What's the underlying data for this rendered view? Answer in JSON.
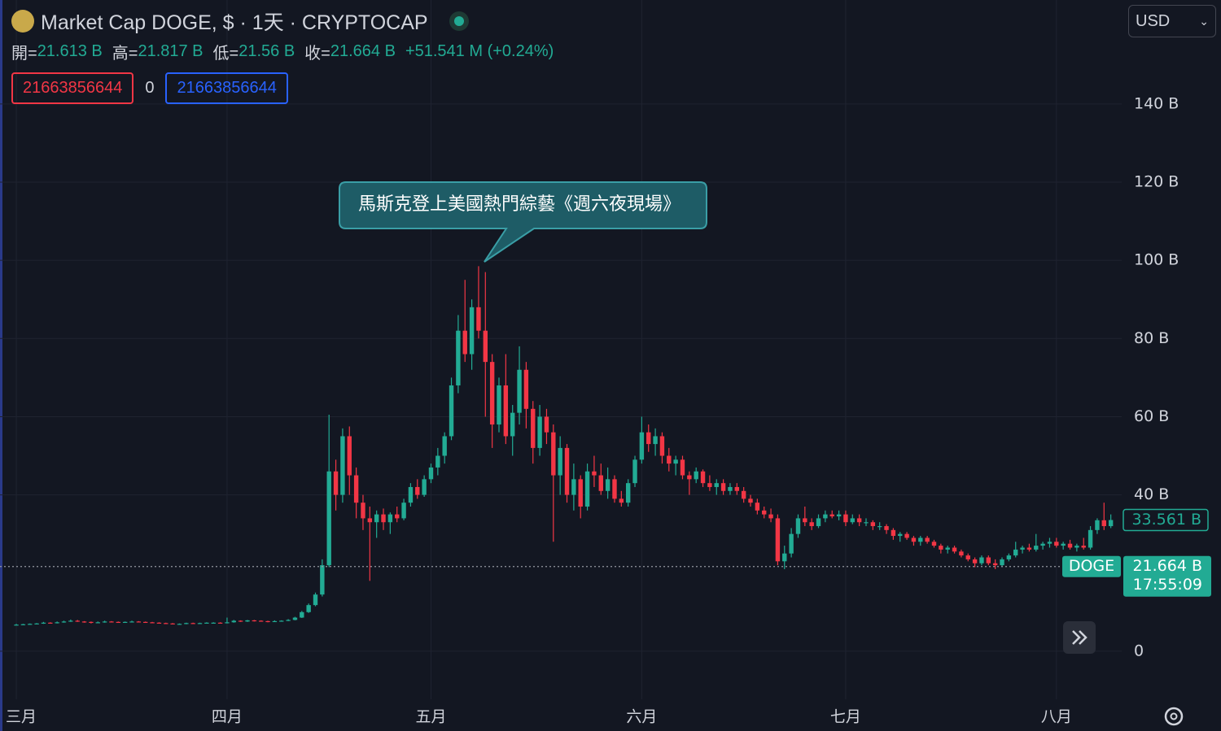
{
  "header": {
    "title": "Market Cap DOGE, $ · 1天 · CRYPTOCAP",
    "ohlc": [
      {
        "label": "開=",
        "value": "21.613 B"
      },
      {
        "label": "高=",
        "value": "21.817 B"
      },
      {
        "label": "低=",
        "value": "21.56 B"
      },
      {
        "label": "收=",
        "value": "21.664 B"
      }
    ],
    "change": "+51.541 M (+0.24%)",
    "indicators": [
      "21663856644",
      "0",
      "21663856644"
    ],
    "currency": "USD"
  },
  "chart_data": {
    "type": "candlestick",
    "annotation": "馬斯克登上美國熱門綜藝《週六夜現場》",
    "up_color": "#22ab94",
    "down_color": "#f23645",
    "grid": true,
    "ylim": [
      -12.3,
      166.6
    ],
    "yticks": [
      {
        "value": 0,
        "label": "0"
      },
      {
        "value": 40,
        "label": "40 B"
      },
      {
        "value": 60,
        "label": "60 B"
      },
      {
        "value": 80,
        "label": "80 B"
      },
      {
        "value": 100,
        "label": "100 B"
      },
      {
        "value": 120,
        "label": "120 B"
      },
      {
        "value": 140,
        "label": "140 B"
      }
    ],
    "xlim": [
      -2.4,
      162.6
    ],
    "xticks": [
      {
        "value": 0,
        "label": "三月"
      },
      {
        "value": 31,
        "label": "四月"
      },
      {
        "value": 61,
        "label": "五月"
      },
      {
        "value": 92,
        "label": "六月"
      },
      {
        "value": 122,
        "label": "七月"
      },
      {
        "value": 153,
        "label": "八月"
      }
    ],
    "last_price": {
      "value": 33.561,
      "label": "33.561 B"
    },
    "compare": {
      "name": "DOGE",
      "value": 21.664,
      "label": "21.664 B",
      "countdown": "17:55:09"
    },
    "ohlc": [
      [
        6.7,
        7.0,
        6.6,
        6.8
      ],
      [
        6.8,
        7.0,
        6.7,
        6.9
      ],
      [
        6.9,
        7.1,
        6.8,
        7.0
      ],
      [
        7.0,
        7.2,
        6.9,
        7.1
      ],
      [
        7.1,
        7.5,
        7.0,
        7.3
      ],
      [
        7.3,
        7.4,
        7.1,
        7.2
      ],
      [
        7.2,
        7.6,
        7.1,
        7.4
      ],
      [
        7.4,
        7.8,
        7.3,
        7.6
      ],
      [
        7.6,
        8.1,
        7.5,
        7.8
      ],
      [
        7.8,
        8.0,
        7.5,
        7.6
      ],
      [
        7.6,
        7.7,
        7.3,
        7.5
      ],
      [
        7.5,
        7.6,
        7.1,
        7.3
      ],
      [
        7.3,
        7.6,
        7.2,
        7.4
      ],
      [
        7.4,
        7.8,
        7.3,
        7.6
      ],
      [
        7.6,
        7.7,
        7.4,
        7.5
      ],
      [
        7.5,
        7.6,
        7.3,
        7.4
      ],
      [
        7.4,
        7.6,
        7.3,
        7.5
      ],
      [
        7.5,
        7.8,
        7.4,
        7.6
      ],
      [
        7.6,
        7.7,
        7.4,
        7.5
      ],
      [
        7.5,
        7.6,
        7.3,
        7.4
      ],
      [
        7.4,
        7.5,
        7.2,
        7.3
      ],
      [
        7.3,
        7.4,
        7.1,
        7.2
      ],
      [
        7.2,
        7.3,
        7.0,
        7.1
      ],
      [
        7.1,
        7.2,
        6.9,
        7.0
      ],
      [
        7.0,
        7.1,
        6.9,
        7.0
      ],
      [
        7.0,
        7.3,
        6.9,
        7.2
      ],
      [
        7.2,
        7.3,
        7.0,
        7.1
      ],
      [
        7.1,
        7.3,
        7.0,
        7.2
      ],
      [
        7.2,
        7.4,
        7.1,
        7.3
      ],
      [
        7.3,
        7.4,
        7.2,
        7.3
      ],
      [
        7.3,
        7.4,
        7.1,
        7.2
      ],
      [
        7.2,
        8.6,
        7.1,
        7.4
      ],
      [
        7.4,
        8.0,
        7.3,
        7.8
      ],
      [
        7.8,
        7.9,
        7.5,
        7.6
      ],
      [
        7.6,
        8.0,
        7.5,
        7.9
      ],
      [
        7.9,
        8.0,
        7.6,
        7.8
      ],
      [
        7.8,
        7.9,
        7.6,
        7.7
      ],
      [
        7.7,
        7.8,
        7.4,
        7.6
      ],
      [
        7.6,
        7.9,
        7.5,
        7.7
      ],
      [
        7.7,
        7.9,
        7.6,
        7.8
      ],
      [
        7.8,
        8.2,
        7.7,
        8.0
      ],
      [
        8.0,
        8.8,
        7.9,
        8.6
      ],
      [
        8.6,
        10.3,
        8.5,
        10.0
      ],
      [
        10.0,
        12.2,
        9.8,
        11.8
      ],
      [
        11.8,
        15.0,
        11.5,
        14.5
      ],
      [
        14.5,
        23.5,
        14.0,
        22.0
      ],
      [
        22.0,
        60.5,
        21.5,
        46.0
      ],
      [
        46.0,
        49.0,
        36.0,
        40.0
      ],
      [
        40.0,
        57.0,
        38.0,
        55.0
      ],
      [
        55.0,
        57.5,
        40.0,
        45.0
      ],
      [
        45.0,
        47.0,
        34.0,
        38.0
      ],
      [
        38.0,
        40.0,
        31.0,
        34.0
      ],
      [
        34.0,
        37.0,
        18.0,
        33.0
      ],
      [
        33.0,
        36.0,
        29.0,
        35.0
      ],
      [
        35.0,
        36.5,
        31.0,
        33.0
      ],
      [
        33.0,
        35.5,
        30.0,
        35.0
      ],
      [
        35.0,
        37.0,
        33.0,
        34.0
      ],
      [
        34.0,
        39.0,
        33.5,
        38.0
      ],
      [
        38.0,
        43.0,
        37.0,
        42.0
      ],
      [
        42.0,
        44.0,
        39.0,
        40.0
      ],
      [
        40.0,
        45.0,
        39.5,
        44.0
      ],
      [
        44.0,
        48.0,
        43.0,
        47.0
      ],
      [
        47.0,
        52.0,
        45.0,
        50.0
      ],
      [
        50.0,
        56.0,
        48.0,
        55.0
      ],
      [
        55.0,
        70.0,
        54.0,
        68.0
      ],
      [
        68.0,
        86.0,
        66.0,
        82.0
      ],
      [
        82.0,
        95.0,
        74.0,
        76.0
      ],
      [
        76.0,
        90.0,
        72.0,
        88.0
      ],
      [
        88.0,
        98.5,
        80.0,
        82.0
      ],
      [
        82.0,
        97.0,
        60.0,
        74.0
      ],
      [
        74.0,
        76.0,
        52.0,
        58.0
      ],
      [
        58.0,
        70.0,
        56.0,
        68.0
      ],
      [
        68.0,
        76.0,
        53.0,
        55.0
      ],
      [
        55.0,
        63.0,
        50.0,
        61.0
      ],
      [
        61.0,
        78.0,
        58.0,
        72.0
      ],
      [
        72.0,
        74.0,
        57.0,
        62.0
      ],
      [
        62.0,
        64.0,
        48.0,
        52.0
      ],
      [
        52.0,
        63.0,
        50.0,
        60.0
      ],
      [
        60.0,
        62.0,
        53.0,
        56.0
      ],
      [
        56.0,
        58.0,
        28.0,
        45.0
      ],
      [
        45.0,
        55.0,
        40.0,
        52.0
      ],
      [
        52.0,
        53.0,
        38.0,
        40.0
      ],
      [
        40.0,
        48.0,
        36.0,
        44.0
      ],
      [
        44.0,
        45.0,
        34.0,
        37.0
      ],
      [
        37.0,
        48.0,
        36.0,
        46.0
      ],
      [
        46.0,
        50.0,
        42.0,
        45.0
      ],
      [
        45.0,
        48.0,
        40.0,
        41.0
      ],
      [
        41.0,
        47.0,
        39.0,
        44.0
      ],
      [
        44.0,
        45.0,
        38.0,
        39.0
      ],
      [
        39.0,
        41.0,
        37.0,
        38.0
      ],
      [
        38.0,
        44.0,
        37.0,
        43.0
      ],
      [
        43.0,
        50.0,
        42.0,
        49.0
      ],
      [
        49.0,
        60.0,
        48.0,
        56.0
      ],
      [
        56.0,
        58.0,
        51.0,
        53.0
      ],
      [
        53.0,
        57.0,
        50.0,
        55.0
      ],
      [
        55.0,
        56.0,
        48.0,
        50.0
      ],
      [
        50.0,
        52.0,
        46.0,
        48.0
      ],
      [
        48.0,
        50.0,
        45.0,
        49.0
      ],
      [
        49.0,
        50.0,
        44.0,
        45.0
      ],
      [
        45.0,
        46.0,
        40.0,
        44.0
      ],
      [
        44.0,
        47.0,
        43.0,
        46.0
      ],
      [
        46.0,
        46.5,
        42.0,
        43.0
      ],
      [
        43.0,
        45.0,
        41.0,
        42.0
      ],
      [
        42.0,
        44.0,
        40.0,
        43.0
      ],
      [
        43.0,
        44.0,
        40.0,
        41.0
      ],
      [
        41.0,
        43.0,
        40.0,
        42.0
      ],
      [
        42.0,
        43.0,
        40.0,
        41.0
      ],
      [
        41.0,
        42.0,
        38.0,
        39.0
      ],
      [
        39.0,
        40.0,
        37.0,
        38.0
      ],
      [
        38.0,
        39.0,
        35.0,
        36.0
      ],
      [
        36.0,
        37.0,
        34.0,
        35.0
      ],
      [
        35.0,
        36.5,
        33.0,
        34.0
      ],
      [
        34.0,
        35.0,
        22.0,
        23.0
      ],
      [
        23.0,
        27.0,
        21.0,
        25.0
      ],
      [
        25.0,
        31.5,
        24.0,
        30.0
      ],
      [
        30.0,
        35.0,
        29.0,
        34.0
      ],
      [
        34.0,
        37.0,
        32.0,
        33.0
      ],
      [
        33.0,
        34.0,
        31.0,
        32.0
      ],
      [
        32.0,
        35.0,
        31.5,
        34.0
      ],
      [
        34.0,
        36.0,
        33.0,
        35.0
      ],
      [
        35.0,
        36.0,
        34.0,
        34.5
      ],
      [
        34.5,
        36.0,
        33.5,
        35.0
      ],
      [
        35.0,
        36.0,
        32.0,
        33.0
      ],
      [
        33.0,
        35.0,
        32.5,
        34.0
      ],
      [
        34.0,
        35.0,
        32.0,
        33.0
      ],
      [
        33.0,
        34.0,
        32.0,
        33.0
      ],
      [
        33.0,
        33.5,
        31.0,
        32.0
      ],
      [
        32.0,
        33.0,
        31.0,
        32.0
      ],
      [
        32.0,
        32.5,
        30.0,
        31.0
      ],
      [
        31.0,
        31.5,
        28.5,
        29.5
      ],
      [
        29.5,
        30.5,
        28.0,
        30.0
      ],
      [
        30.0,
        30.5,
        28.5,
        29.0
      ],
      [
        29.0,
        29.5,
        27.0,
        28.0
      ],
      [
        28.0,
        29.5,
        27.0,
        29.0
      ],
      [
        29.0,
        29.5,
        27.5,
        28.0
      ],
      [
        28.0,
        28.5,
        26.5,
        27.0
      ],
      [
        27.0,
        27.5,
        25.0,
        26.0
      ],
      [
        26.0,
        27.0,
        25.0,
        26.5
      ],
      [
        26.5,
        27.0,
        25.0,
        25.5
      ],
      [
        25.5,
        26.0,
        24.0,
        24.5
      ],
      [
        24.5,
        25.0,
        23.0,
        23.5
      ],
      [
        23.5,
        24.0,
        21.5,
        22.5
      ],
      [
        22.5,
        24.5,
        22.0,
        24.0
      ],
      [
        24.0,
        24.5,
        22.0,
        22.5
      ],
      [
        22.5,
        23.5,
        21.0,
        22.0
      ],
      [
        22.0,
        24.0,
        21.5,
        23.5
      ],
      [
        23.5,
        25.0,
        23.0,
        24.5
      ],
      [
        24.5,
        28.0,
        24.0,
        26.0
      ],
      [
        26.0,
        27.0,
        25.0,
        26.5
      ],
      [
        26.5,
        27.5,
        25.5,
        26.0
      ],
      [
        26.0,
        30.0,
        25.5,
        27.0
      ],
      [
        27.0,
        28.0,
        26.0,
        27.5
      ],
      [
        27.5,
        29.0,
        26.5,
        28.0
      ],
      [
        28.0,
        29.0,
        26.5,
        27.0
      ],
      [
        27.0,
        28.0,
        26.0,
        27.5
      ],
      [
        27.5,
        28.5,
        26.0,
        26.5
      ],
      [
        26.5,
        27.5,
        25.5,
        27.0
      ],
      [
        27.0,
        29.0,
        26.0,
        26.5
      ],
      [
        26.5,
        32.0,
        26.0,
        31.0
      ],
      [
        31.0,
        34.0,
        30.0,
        33.5
      ],
      [
        33.5,
        38.0,
        31.0,
        32.0
      ],
      [
        32.0,
        35.0,
        31.5,
        33.561
      ]
    ]
  }
}
